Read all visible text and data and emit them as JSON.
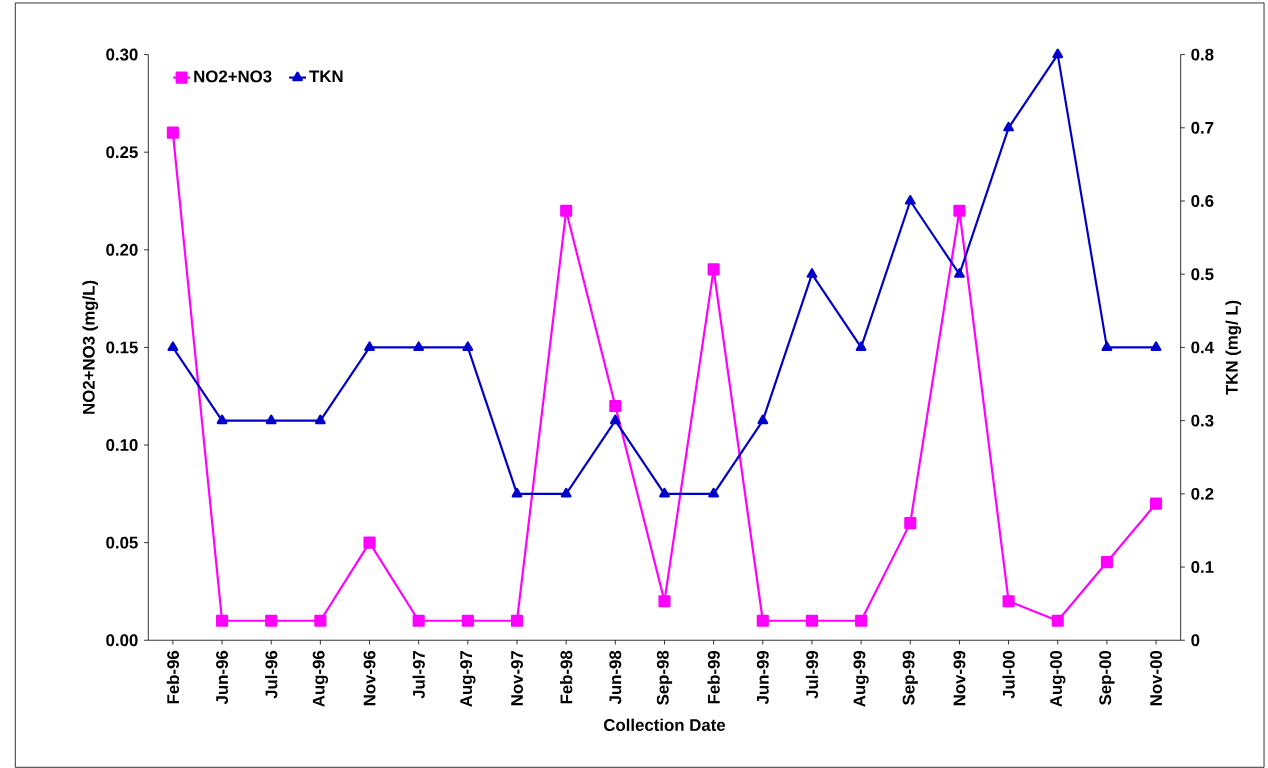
{
  "chart_data": {
    "type": "line",
    "categories": [
      "Feb-96",
      "Jun-96",
      "Jul-96",
      "Aug-96",
      "Nov-96",
      "Jul-97",
      "Aug-97",
      "Nov-97",
      "Feb-98",
      "Jun-98",
      "Sep-98",
      "Feb-99",
      "Jun-99",
      "Jul-99",
      "Aug-99",
      "Sep-99",
      "Nov-99",
      "Jul-00",
      "Aug-00",
      "Sep-00",
      "Nov-00"
    ],
    "series": [
      {
        "name": "NO2+NO3",
        "color": "#ff00ff",
        "marker": "square",
        "values": [
          0.26,
          0.01,
          0.01,
          0.01,
          0.05,
          0.01,
          0.01,
          0.01,
          0.22,
          0.12,
          0.02,
          0.19,
          0.01,
          0.01,
          0.01,
          0.06,
          0.22,
          0.02,
          0.01,
          0.04,
          0.07
        ]
      },
      {
        "name": "TKN",
        "color": "#0000cc",
        "marker": "triangle",
        "axis": "y2",
        "values": [
          0.4,
          0.3,
          0.3,
          0.3,
          0.4,
          0.4,
          0.4,
          0.2,
          0.2,
          0.3,
          0.2,
          0.2,
          0.3,
          0.5,
          0.4,
          0.6,
          0.5,
          0.7,
          0.8,
          0.4,
          0.4
        ]
      }
    ],
    "xlabel": "Collection Date",
    "ylabel": "NO2+NO3 (mg/L)",
    "y2label": "TKN (mg/ L)",
    "ylim": [
      0,
      0.3
    ],
    "yticks": [
      {
        "value": 0,
        "label": "0.00"
      },
      {
        "value": 0.05,
        "label": "0.05"
      },
      {
        "value": 0.1,
        "label": "0.10"
      },
      {
        "value": 0.15,
        "label": "0.15"
      },
      {
        "value": 0.2,
        "label": "0.20"
      },
      {
        "value": 0.25,
        "label": "0.25"
      },
      {
        "value": 0.3,
        "label": "0.30"
      }
    ],
    "y2lim": [
      0,
      0.8
    ],
    "y2ticks": [
      0,
      0.1,
      0.2,
      0.3,
      0.4,
      0.5,
      0.6,
      0.7,
      0.8
    ],
    "legend": "top left",
    "line_style": "solid"
  }
}
